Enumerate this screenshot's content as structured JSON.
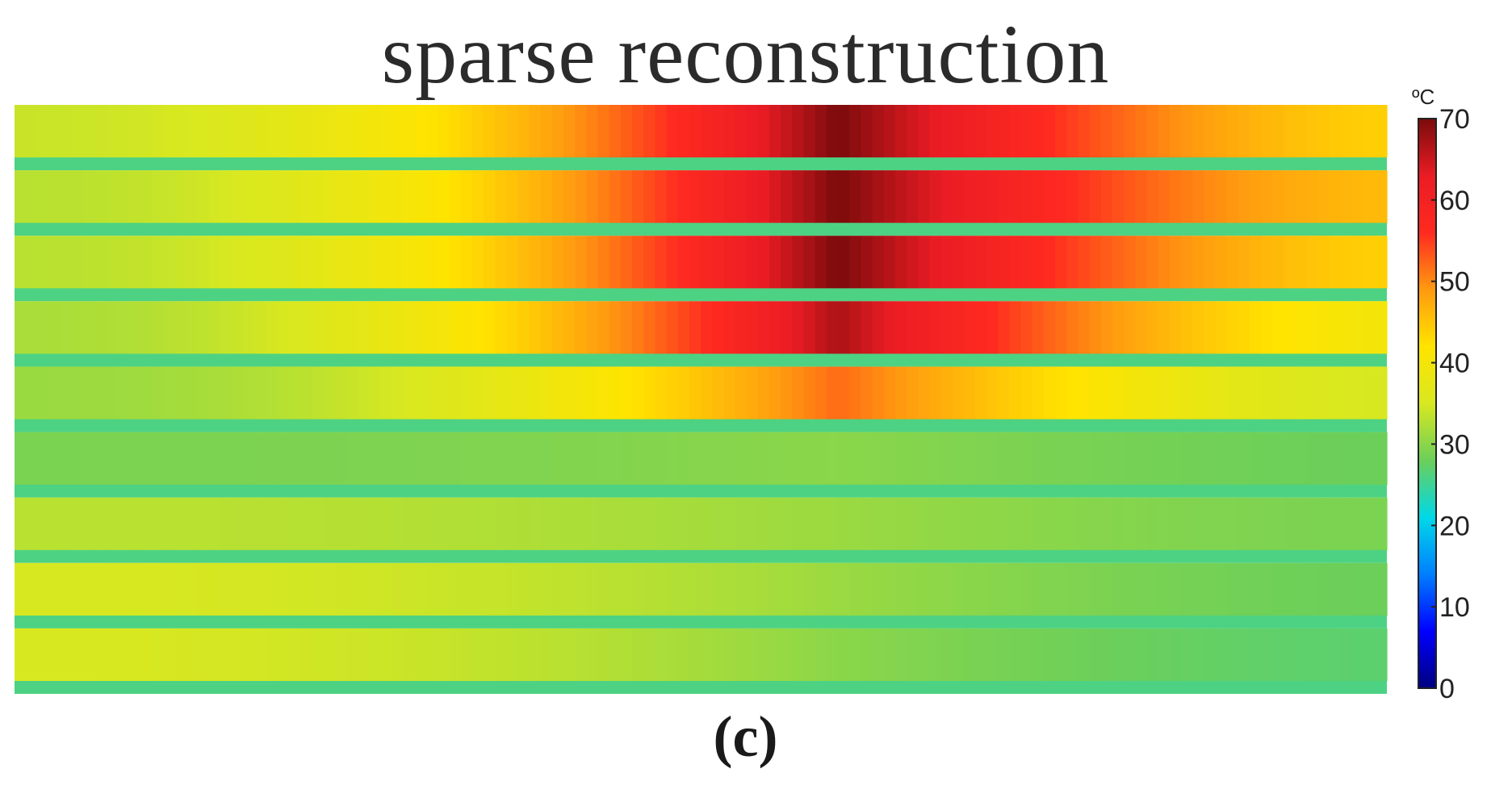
{
  "panel_label": "(c)",
  "chart_data": {
    "type": "heatmap",
    "title": "sparse reconstruction",
    "xlabel": "",
    "ylabel": "",
    "colorbar": {
      "unit": "ºC",
      "range": [
        0,
        70
      ],
      "ticks": [
        "0",
        "10",
        "20",
        "30",
        "40",
        "50",
        "60",
        "70"
      ],
      "colormap": "jet",
      "stops": [
        "#00007f",
        "#0000ff",
        "#007fff",
        "#00d8e8",
        "#6ccf5a",
        "#d8e820",
        "#ffe400",
        "#ff9a10",
        "#ff2a20",
        "#ea1c24",
        "#7a0b0b"
      ]
    },
    "description_profile": {
      "hot_column_fraction": 0.6,
      "rows": [
        {
          "band": 1,
          "peak": 70,
          "left": 34,
          "right": 44
        },
        {
          "band": 2,
          "peak": 70,
          "left": 33,
          "right": 46
        },
        {
          "band": 3,
          "peak": 70,
          "left": 33,
          "right": 44
        },
        {
          "band": 4,
          "peak": 67,
          "left": 32,
          "right": 40
        },
        {
          "band": 5,
          "peak": 52,
          "left": 31,
          "right": 35
        },
        {
          "band": 6,
          "peak": 30,
          "left": 29,
          "right": 28
        },
        {
          "band": 7,
          "peak": 31,
          "left": 33,
          "right": 29
        },
        {
          "band": 8,
          "peak": 31,
          "left": 35,
          "right": 28
        },
        {
          "band": 9,
          "peak": 30,
          "left": 35,
          "right": 27
        }
      ],
      "separator_value": 26
    }
  }
}
